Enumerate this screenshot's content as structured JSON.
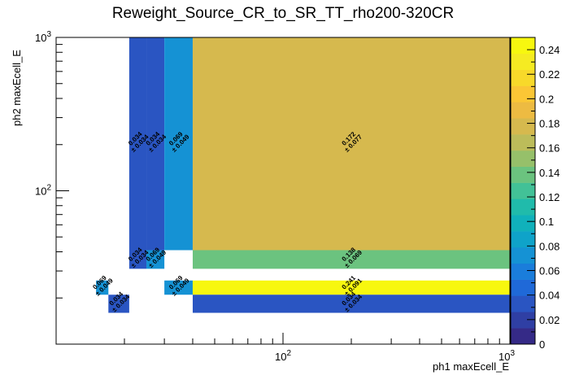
{
  "chart_data": {
    "type": "heatmap",
    "title": "Reweight_Source_CR_to_SR_TT_rho200-320CR",
    "xlabel": "ph1 maxEcell_E",
    "ylabel": "ph2 maxEcell_E",
    "x_scale": "log",
    "y_scale": "log",
    "xlim": [
      10,
      1000
    ],
    "ylim": [
      10,
      1000
    ],
    "x_ticks": [
      "10^2",
      "10^3"
    ],
    "y_ticks": [
      "10^2",
      "10^3"
    ],
    "colorbar": {
      "range": [
        0,
        0.25
      ],
      "tick_labels": [
        "0",
        "0.02",
        "0.04",
        "0.06",
        "0.08",
        "0.1",
        "0.12",
        "0.14",
        "0.16",
        "0.18",
        "0.2",
        "0.22",
        "0.24"
      ]
    },
    "cells": [
      {
        "x": [
          21,
          25
        ],
        "y": [
          41,
          1000
        ],
        "value": 0.034,
        "label": "0.034",
        "error": "± 0.034"
      },
      {
        "x": [
          25,
          30
        ],
        "y": [
          41,
          1000
        ],
        "value": 0.034,
        "label": "0.034",
        "error": "± 0.034"
      },
      {
        "x": [
          30,
          40
        ],
        "y": [
          41,
          1000
        ],
        "value": 0.069,
        "label": "0.069",
        "error": "± 0.049"
      },
      {
        "x": [
          40,
          1000
        ],
        "y": [
          41,
          1000
        ],
        "value": 0.172,
        "label": "0.172",
        "error": "± 0.077"
      },
      {
        "x": [
          21,
          25
        ],
        "y": [
          31,
          41
        ],
        "value": 0.034,
        "label": "0.034",
        "error": "± 0.034"
      },
      {
        "x": [
          25,
          30
        ],
        "y": [
          31,
          41
        ],
        "value": 0.069,
        "label": "0.069",
        "error": "± 0.049"
      },
      {
        "x": [
          40,
          1000
        ],
        "y": [
          31,
          41
        ],
        "value": 0.138,
        "label": "0.138",
        "error": "± 0.069"
      },
      {
        "x": [
          15,
          17
        ],
        "y": [
          21,
          26
        ],
        "value": 0.069,
        "label": "0.069",
        "error": "± 0.049"
      },
      {
        "x": [
          30,
          40
        ],
        "y": [
          21,
          26
        ],
        "value": 0.069,
        "label": "0.069",
        "error": "± 0.049"
      },
      {
        "x": [
          40,
          1000
        ],
        "y": [
          21,
          26
        ],
        "value": 0.241,
        "label": "0.241",
        "error": "± 0.091"
      },
      {
        "x": [
          17,
          21
        ],
        "y": [
          16,
          21
        ],
        "value": 0.034,
        "label": "0.034",
        "error": "± 0.034"
      },
      {
        "x": [
          40,
          1000
        ],
        "y": [
          16,
          21
        ],
        "value": 0.034,
        "label": "0.034",
        "error": "± 0.034"
      }
    ]
  }
}
